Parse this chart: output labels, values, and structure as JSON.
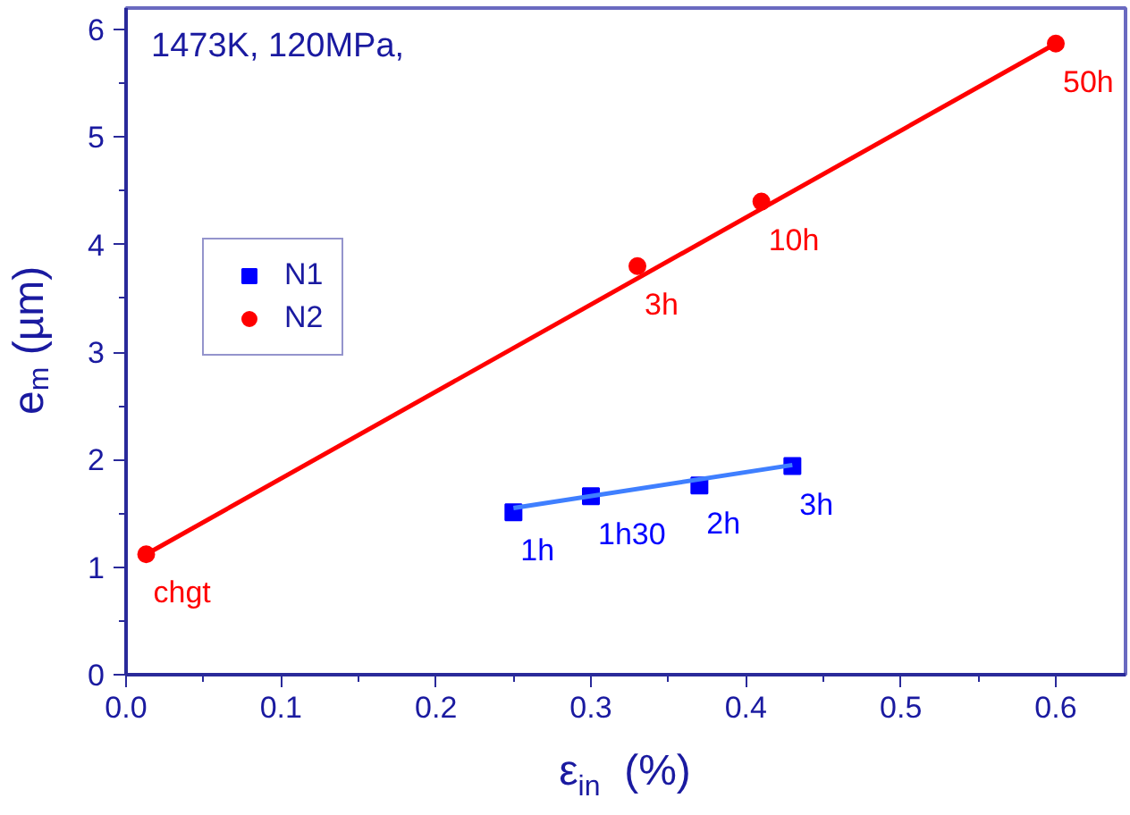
{
  "chart_data": {
    "type": "scatter",
    "xlabel": "ε$_{in}$  (%)",
    "ylabel": "e$_{m}$ (µm)",
    "annotations": [
      "1473K, 120MPa,",
      {
        "text": "1h",
        "x": 0.25,
        "y": 1.51
      },
      {
        "text": "1h30",
        "x": 0.3,
        "y": 1.66
      },
      {
        "text": "2h",
        "x": 0.37,
        "y": 1.76
      },
      {
        "text": "3h",
        "x": 0.43,
        "y": 1.94
      },
      {
        "text": "chgt",
        "x": 0.013,
        "y": 1.12
      },
      {
        "text": "3h",
        "x": 0.33,
        "y": 3.8
      },
      {
        "text": "10h",
        "x": 0.41,
        "y": 4.4
      },
      {
        "text": "50h",
        "x": 0.6,
        "y": 5.87
      }
    ],
    "xlim": [
      0,
      0.645
    ],
    "ylim": [
      0,
      6.2
    ],
    "xticks": [
      {
        "value": 0,
        "label": "0.0"
      },
      0.1,
      0.2,
      0.3,
      0.4,
      0.5,
      0.6
    ],
    "yticks": [
      0,
      1,
      2,
      3,
      4,
      5,
      6
    ],
    "grid": false,
    "legend": "top left",
    "series": [
      {
        "name": "N1",
        "marker": "square",
        "color": "#0000ff",
        "x": [
          0.25,
          0.3,
          0.37,
          0.43
        ],
        "values": [
          1.51,
          1.66,
          1.76,
          1.94
        ]
      },
      {
        "name": "N2",
        "marker": "circle",
        "color": "#ff0000",
        "x": [
          0.013,
          0.33,
          0.41,
          0.6
        ],
        "values": [
          1.12,
          3.8,
          4.4,
          5.87
        ]
      },
      {
        "type": "line",
        "color": "#3f7fff",
        "x": [
          0.25,
          0.43
        ],
        "values": [
          1.55,
          1.95
        ]
      },
      {
        "type": "line",
        "color": "#ff0000",
        "x": [
          0.013,
          0.6
        ],
        "values": [
          1.12,
          5.87
        ]
      }
    ]
  }
}
